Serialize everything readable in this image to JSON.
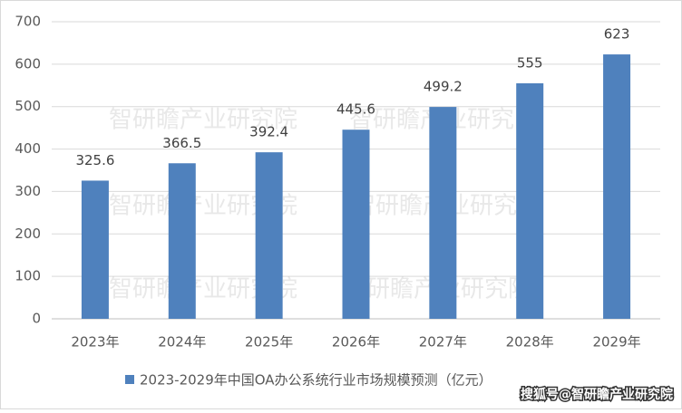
{
  "chart_data": {
    "type": "bar",
    "categories": [
      "2023年",
      "2024年",
      "2025年",
      "2026年",
      "2027年",
      "2028年",
      "2029年"
    ],
    "series": [
      {
        "name": "2023-2029年中国OA办公系统行业市场规模预测（亿元）",
        "color": "#4f81bd",
        "values": [
          325.6,
          366.5,
          392.4,
          445.6,
          499.2,
          555,
          623
        ]
      }
    ],
    "ylim": [
      0,
      700
    ],
    "yticks": [
      0,
      100,
      200,
      300,
      400,
      500,
      600,
      700
    ],
    "grid": true,
    "legend": "bottom"
  },
  "watermarks": [
    "智研瞻产业研究院",
    "智研瞻产业研究院",
    "智研瞻产业研究院",
    "智研瞻产业研究院",
    "智研瞻产业研究院",
    "智研瞻产业研究院"
  ],
  "source": "搜狐号@智研瞻产业研究院"
}
